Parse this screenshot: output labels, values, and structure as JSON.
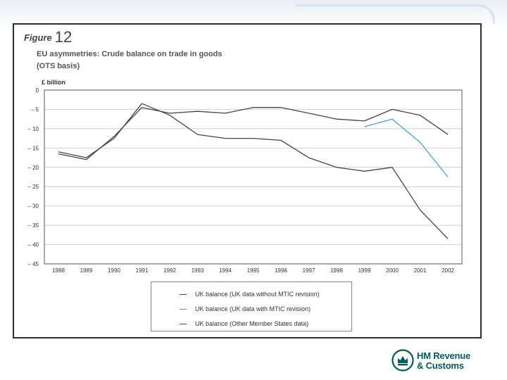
{
  "figure": {
    "label_word": "Figure",
    "label_number": "12",
    "title_line1": "EU asymmetries: Crude balance on trade in goods",
    "title_line2": "(OTS basis)"
  },
  "logo": {
    "line1": "HM Revenue",
    "line2": "& Customs"
  },
  "colors": {
    "series_dark": "#444444",
    "series_light": "#4a9fd6",
    "grid": "#bbbbbb",
    "brand": "#005a60"
  },
  "chart_data": {
    "type": "line",
    "title": "",
    "ylabel": "£ billion",
    "xlabel": "",
    "ylim": [
      -45,
      0
    ],
    "yticks": [
      0,
      -5,
      -10,
      -15,
      -20,
      -25,
      -30,
      -35,
      -40,
      -45
    ],
    "ytick_labels": [
      "0",
      "– 5",
      "– 10",
      "– 15",
      "– 20",
      "– 25",
      "– 30",
      "– 35",
      "– 40",
      "– 45"
    ],
    "categories": [
      "1988",
      "1989",
      "1990",
      "1991",
      "1992",
      "1993",
      "1994",
      "1995",
      "1996",
      "1997",
      "1998",
      "1999",
      "2000",
      "2001",
      "2002"
    ],
    "grid": "horizontal",
    "legend_position": "bottom",
    "series": [
      {
        "name": "UK balance (UK data without MTIC revision)",
        "color": "#444444",
        "values": [
          -16.5,
          -18.0,
          -12.0,
          -4.5,
          -6.0,
          -5.5,
          -6.0,
          -4.5,
          -4.5,
          -6.0,
          -7.5,
          -8.0,
          -5.0,
          -6.5,
          -11.5
        ]
      },
      {
        "name": "UK balance (UK data with MTIC revision)",
        "color": "#4a9fd6",
        "values": [
          null,
          null,
          null,
          null,
          null,
          null,
          null,
          null,
          null,
          null,
          null,
          -9.5,
          -7.5,
          -13.5,
          -22.5
        ]
      },
      {
        "name": "UK balance (Other Member States data)",
        "color": "#444444",
        "values": [
          -16.0,
          -17.5,
          -12.5,
          -3.5,
          -6.5,
          -11.5,
          -12.5,
          -12.5,
          -13.0,
          -17.5,
          -20.0,
          -21.0,
          -20.0,
          -31.0,
          -38.5
        ]
      }
    ]
  }
}
